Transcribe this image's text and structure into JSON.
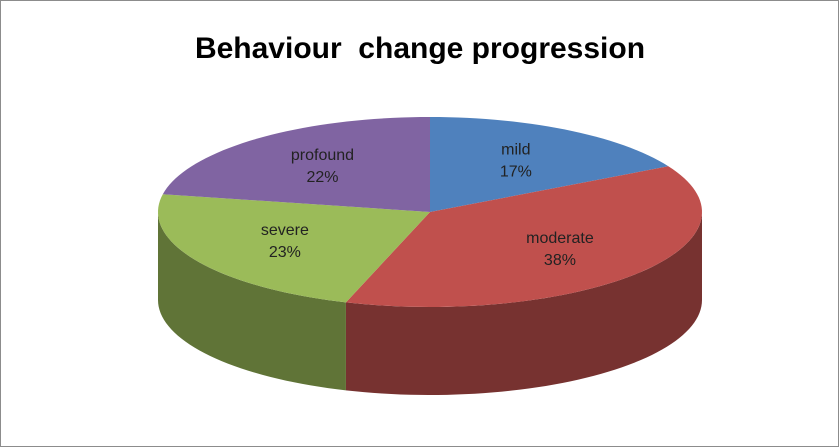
{
  "chart_data": {
    "type": "pie3d",
    "title": "Behaviour  change progression",
    "categories": [
      "mild",
      "moderate",
      "severe",
      "profound"
    ],
    "values": [
      17,
      38,
      23,
      22
    ],
    "value_labels": [
      "17%",
      "38%",
      "23%",
      "22%"
    ],
    "colors": [
      "#4f81bd",
      "#c0504d",
      "#9bbb59",
      "#8064a2"
    ]
  }
}
